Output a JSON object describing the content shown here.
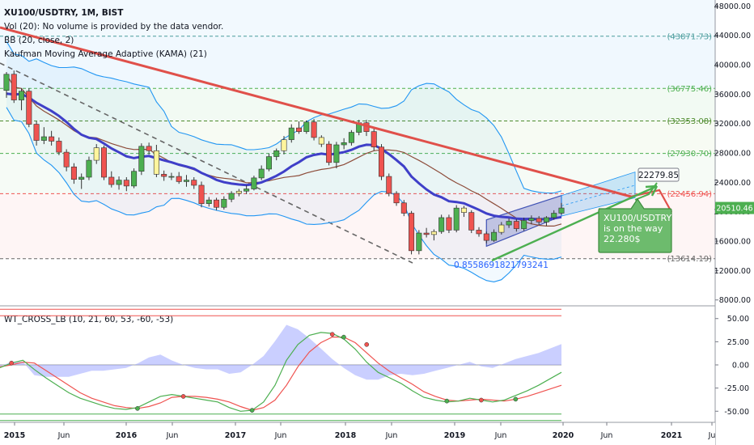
{
  "legend": {
    "symbol_line": "XU100/USDTRY, 1M, BIST",
    "volume_line": "Vol (20): No volume is provided by the data vendor.",
    "bb_line": "BB (20, close, 2)",
    "kama_line": "Kaufman Moving Average Adaptive (KAMA) (21)",
    "indicator_line": "WT_CROSS_LB (10, 21, 60, 53, -60, -53)"
  },
  "colors": {
    "up_candle": "#4caf50",
    "down_candle": "#ef5350",
    "yellow_candle": "#fff59d",
    "bb_line": "#2196f3",
    "kama_line": "#3f3fc8",
    "basis_line": "#8d4c3a",
    "trend_line": "#e0504a",
    "dashed_line": "#666666",
    "wt1": "#4caf50",
    "wt2": "#ef5350",
    "histogram": "#9fa8ff",
    "price_badge": "#4caf50",
    "ob_levels": "#ef5350",
    "os_levels": "#4caf50"
  },
  "price_axis": {
    "ticks": [
      "48000.00",
      "44000.00",
      "40000.00",
      "36000.00",
      "32000.00",
      "28000.00",
      "24000.00",
      "20000.00",
      "16000.00",
      "12000.00",
      "8000.00"
    ],
    "current_price": "20510.46"
  },
  "indicator_axis": {
    "ticks": [
      "50.00",
      "25.00",
      "0.00",
      "-25.00",
      "-50.00"
    ]
  },
  "time_axis": {
    "ticks": [
      "2015",
      "Jun",
      "2016",
      "Jun",
      "2017",
      "Jun",
      "2018",
      "Jun",
      "2019",
      "Jun",
      "2020",
      "Jun",
      "2021",
      "Ju"
    ]
  },
  "fib_levels": [
    {
      "label": "(43871.73)",
      "value": 43871.73,
      "color": "#4a9c9c"
    },
    {
      "label": "(36775.46)",
      "value": 36775.46,
      "color": "#4caf50"
    },
    {
      "label": "(32353.08)",
      "value": 32353.08,
      "color": "#4e8a2c"
    },
    {
      "label": "(27930.70)",
      "value": 27930.7,
      "color": "#4caf50"
    },
    {
      "label": "(22456.94)",
      "value": 22456.94,
      "color": "#ef5350"
    },
    {
      "label": "(13614.19)",
      "value": 13614.19,
      "color": "#666666"
    }
  ],
  "annotations": {
    "target_label": "22279.85",
    "ratio_label": "0.8558691821793241",
    "callout_line1": "XU100/USDTRY",
    "callout_line2": "is on the way",
    "callout_line3": "22.280$"
  },
  "chart_data": {
    "type": "candlestick",
    "timeframe": "1M",
    "price_range": [
      7200,
      48800
    ],
    "indicator_range": [
      -62,
      62
    ],
    "candles": [
      {
        "o": 36500,
        "h": 39000,
        "l": 35500,
        "c": 38700
      },
      {
        "o": 38700,
        "h": 39200,
        "l": 34800,
        "c": 35200
      },
      {
        "o": 35200,
        "h": 36800,
        "l": 33800,
        "c": 36400
      },
      {
        "o": 36400,
        "h": 36800,
        "l": 31500,
        "c": 31900
      },
      {
        "o": 31900,
        "h": 32300,
        "l": 29000,
        "c": 29700
      },
      {
        "o": 29700,
        "h": 31500,
        "l": 29200,
        "c": 30200
      },
      {
        "o": 30200,
        "h": 31000,
        "l": 29000,
        "c": 29600
      },
      {
        "o": 29600,
        "h": 30100,
        "l": 27700,
        "c": 28100
      },
      {
        "o": 28100,
        "h": 28500,
        "l": 25500,
        "c": 26100
      },
      {
        "o": 26100,
        "h": 26600,
        "l": 23800,
        "c": 24400
      },
      {
        "o": 24400,
        "h": 25200,
        "l": 23100,
        "c": 24700
      },
      {
        "o": 24700,
        "h": 27500,
        "l": 24300,
        "c": 27000
      },
      {
        "o": 27000,
        "h": 29200,
        "l": 26500,
        "c": 28700
      },
      {
        "o": 28700,
        "h": 29000,
        "l": 24300,
        "c": 24700
      },
      {
        "o": 24700,
        "h": 25500,
        "l": 23300,
        "c": 23700
      },
      {
        "o": 23700,
        "h": 24800,
        "l": 23000,
        "c": 24300
      },
      {
        "o": 24300,
        "h": 24700,
        "l": 22800,
        "c": 23500
      },
      {
        "o": 23500,
        "h": 25900,
        "l": 23200,
        "c": 25500
      },
      {
        "o": 25500,
        "h": 29300,
        "l": 25000,
        "c": 28900
      },
      {
        "o": 28900,
        "h": 29400,
        "l": 27800,
        "c": 28300
      },
      {
        "o": 28300,
        "h": 29100,
        "l": 24700,
        "c": 25100
      },
      {
        "o": 25100,
        "h": 25600,
        "l": 24200,
        "c": 24800
      },
      {
        "o": 24800,
        "h": 25300,
        "l": 24300,
        "c": 24800
      },
      {
        "o": 24800,
        "h": 25400,
        "l": 23800,
        "c": 24100
      },
      {
        "o": 24100,
        "h": 25000,
        "l": 23400,
        "c": 24300
      },
      {
        "o": 24300,
        "h": 24700,
        "l": 23100,
        "c": 23600
      },
      {
        "o": 23600,
        "h": 24100,
        "l": 20600,
        "c": 21100
      },
      {
        "o": 21100,
        "h": 22000,
        "l": 20700,
        "c": 21600
      },
      {
        "o": 21600,
        "h": 21900,
        "l": 20200,
        "c": 20600
      },
      {
        "o": 20600,
        "h": 22100,
        "l": 20300,
        "c": 21700
      },
      {
        "o": 21700,
        "h": 22800,
        "l": 21300,
        "c": 22500
      },
      {
        "o": 22500,
        "h": 23100,
        "l": 22100,
        "c": 22800
      },
      {
        "o": 22800,
        "h": 23600,
        "l": 22400,
        "c": 23100
      },
      {
        "o": 23100,
        "h": 24900,
        "l": 22900,
        "c": 24600
      },
      {
        "o": 24600,
        "h": 26300,
        "l": 24300,
        "c": 25800
      },
      {
        "o": 25800,
        "h": 27900,
        "l": 25500,
        "c": 27500
      },
      {
        "o": 27500,
        "h": 28600,
        "l": 27000,
        "c": 28300
      },
      {
        "o": 28300,
        "h": 30300,
        "l": 27800,
        "c": 29800
      },
      {
        "o": 29800,
        "h": 31900,
        "l": 29400,
        "c": 31400
      },
      {
        "o": 31400,
        "h": 32300,
        "l": 30600,
        "c": 30900
      },
      {
        "o": 30900,
        "h": 32400,
        "l": 30600,
        "c": 32200
      },
      {
        "o": 32200,
        "h": 32600,
        "l": 29700,
        "c": 30100
      },
      {
        "o": 30100,
        "h": 30400,
        "l": 28800,
        "c": 29200
      },
      {
        "o": 29200,
        "h": 29600,
        "l": 26300,
        "c": 26700
      },
      {
        "o": 26700,
        "h": 29500,
        "l": 25900,
        "c": 29100
      },
      {
        "o": 29100,
        "h": 30000,
        "l": 28500,
        "c": 29400
      },
      {
        "o": 29400,
        "h": 31100,
        "l": 29000,
        "c": 30800
      },
      {
        "o": 30800,
        "h": 32500,
        "l": 30400,
        "c": 32100
      },
      {
        "o": 32100,
        "h": 32500,
        "l": 30300,
        "c": 30900
      },
      {
        "o": 30900,
        "h": 31300,
        "l": 28300,
        "c": 28800
      },
      {
        "o": 28800,
        "h": 29200,
        "l": 24300,
        "c": 24800
      },
      {
        "o": 24800,
        "h": 25200,
        "l": 22100,
        "c": 22500
      },
      {
        "o": 22500,
        "h": 22800,
        "l": 20800,
        "c": 21200
      },
      {
        "o": 21200,
        "h": 21600,
        "l": 19400,
        "c": 19800
      },
      {
        "o": 19800,
        "h": 20100,
        "l": 14200,
        "c": 14700
      },
      {
        "o": 14700,
        "h": 17500,
        "l": 14200,
        "c": 17100
      },
      {
        "o": 17100,
        "h": 17800,
        "l": 16500,
        "c": 16900
      },
      {
        "o": 16900,
        "h": 17600,
        "l": 16100,
        "c": 17300
      },
      {
        "o": 17300,
        "h": 19600,
        "l": 17000,
        "c": 19200
      },
      {
        "o": 19200,
        "h": 19600,
        "l": 17100,
        "c": 17500
      },
      {
        "o": 17500,
        "h": 20900,
        "l": 17200,
        "c": 20500
      },
      {
        "o": 20500,
        "h": 20800,
        "l": 19300,
        "c": 19900
      },
      {
        "o": 19900,
        "h": 20200,
        "l": 17100,
        "c": 17500
      },
      {
        "o": 17500,
        "h": 17900,
        "l": 16600,
        "c": 17000
      },
      {
        "o": 17000,
        "h": 17300,
        "l": 15700,
        "c": 16100
      },
      {
        "o": 16100,
        "h": 17600,
        "l": 15900,
        "c": 17200
      },
      {
        "o": 17200,
        "h": 18600,
        "l": 16900,
        "c": 18200
      },
      {
        "o": 18200,
        "h": 19100,
        "l": 17800,
        "c": 18700
      },
      {
        "o": 18700,
        "h": 19000,
        "l": 17300,
        "c": 17700
      },
      {
        "o": 17700,
        "h": 19200,
        "l": 17400,
        "c": 18800
      },
      {
        "o": 18800,
        "h": 19500,
        "l": 18300,
        "c": 19100
      },
      {
        "o": 19100,
        "h": 19400,
        "l": 18200,
        "c": 18600
      },
      {
        "o": 18600,
        "h": 19400,
        "l": 18100,
        "c": 19200
      },
      {
        "o": 19200,
        "h": 20200,
        "l": 18900,
        "c": 19800
      },
      {
        "o": 19800,
        "h": 21200,
        "l": 19600,
        "c": 20510
      }
    ],
    "yellow_candle_indices": [
      12,
      20,
      31,
      37,
      42,
      57,
      61,
      66
    ],
    "wt1": [
      -3,
      2,
      5,
      -5,
      -14,
      -22,
      -30,
      -36,
      -40,
      -44,
      -47,
      -48,
      -46,
      -40,
      -34,
      -32,
      -34,
      -36,
      -38,
      -40,
      -46,
      -50,
      -49,
      -40,
      -22,
      5,
      22,
      32,
      35,
      34,
      28,
      17,
      3,
      -8,
      -14,
      -20,
      -28,
      -35,
      -38,
      -40,
      -39,
      -36,
      -38,
      -40,
      -38,
      -33,
      -28,
      -22,
      -15,
      -8
    ],
    "wt2": [
      -2,
      0,
      3,
      2,
      -6,
      -14,
      -22,
      -30,
      -36,
      -40,
      -44,
      -46,
      -47,
      -45,
      -41,
      -35,
      -34,
      -34,
      -35,
      -37,
      -40,
      -45,
      -49,
      -46,
      -38,
      -22,
      -2,
      14,
      24,
      30,
      30,
      24,
      13,
      2,
      -7,
      -14,
      -21,
      -29,
      -34,
      -38,
      -39,
      -38,
      -37,
      -38,
      -39,
      -37,
      -34,
      -30,
      -26,
      -22
    ],
    "wt_cross_points": [
      {
        "i": 1,
        "v": 2,
        "color": "#ef5350"
      },
      {
        "i": 12,
        "v": -47,
        "color": "#4caf50"
      },
      {
        "i": 16,
        "v": -34,
        "color": "#ef5350"
      },
      {
        "i": 22,
        "v": -49,
        "color": "#4caf50"
      },
      {
        "i": 29,
        "v": 33,
        "color": "#ef5350"
      },
      {
        "i": 30,
        "v": 30,
        "color": "#4caf50"
      },
      {
        "i": 32,
        "v": 22,
        "color": "#ef5350"
      },
      {
        "i": 39,
        "v": -39,
        "color": "#4caf50"
      },
      {
        "i": 42,
        "v": -38,
        "color": "#ef5350"
      },
      {
        "i": 45,
        "v": -37,
        "color": "#4caf50"
      }
    ],
    "wt_levels": {
      "ob1": 60,
      "ob2": 53,
      "os1": -60,
      "os2": -53
    }
  }
}
